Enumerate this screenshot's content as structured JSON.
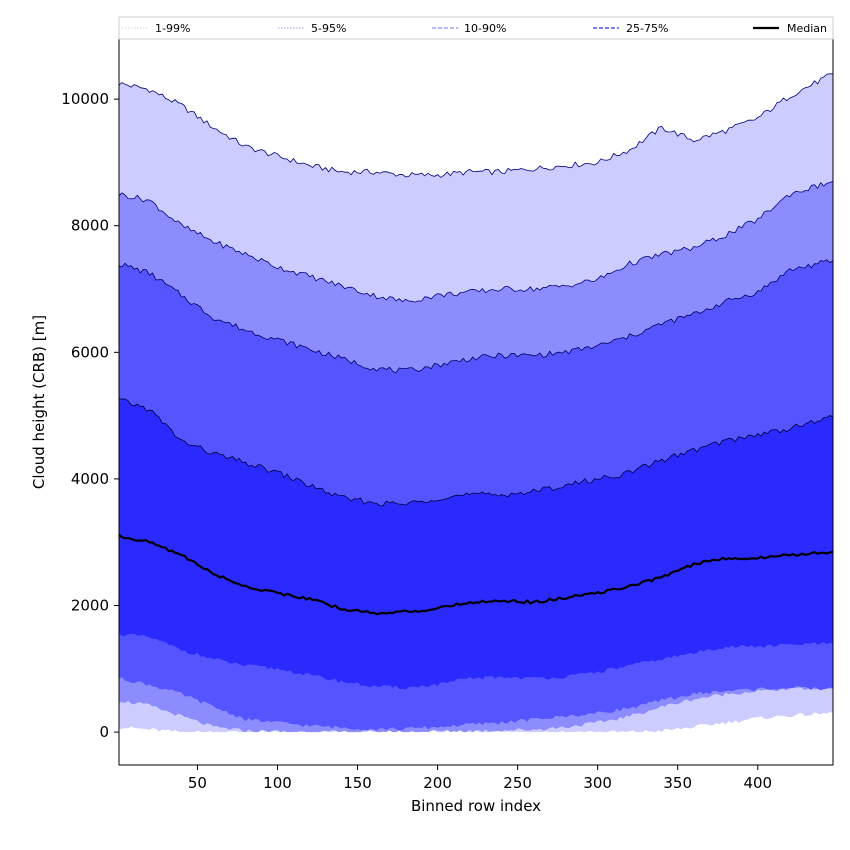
{
  "chart_data": {
    "type": "area",
    "xlabel": "Binned row index",
    "ylabel": "Cloud height (CRB) [m]",
    "xlim": [
      1,
      447
    ],
    "ylim": [
      -520,
      10950
    ],
    "x_ticks": [
      50,
      100,
      150,
      200,
      250,
      300,
      350,
      400
    ],
    "y_ticks": [
      0,
      2000,
      4000,
      6000,
      8000,
      10000
    ],
    "legend_position": "top",
    "x": [
      1,
      20,
      40,
      60,
      80,
      100,
      120,
      140,
      160,
      180,
      200,
      220,
      240,
      260,
      280,
      300,
      320,
      340,
      360,
      380,
      400,
      420,
      447
    ],
    "bands": [
      {
        "name": "1-99%",
        "color": "#ccccff",
        "edge_color": "#000080",
        "lower": [
          80,
          40,
          0,
          0,
          0,
          0,
          0,
          0,
          0,
          0,
          0,
          0,
          0,
          0,
          0,
          0,
          0,
          20,
          80,
          150,
          220,
          260,
          300
        ],
        "upper": [
          10250,
          10150,
          9900,
          9550,
          9250,
          9100,
          8950,
          8850,
          8850,
          8800,
          8800,
          8850,
          8850,
          8900,
          8950,
          9000,
          9200,
          9550,
          9350,
          9500,
          9700,
          10050,
          10400
        ]
      },
      {
        "name": "5-95%",
        "color": "#8c8cff",
        "edge_color": "#000080",
        "lower": [
          500,
          420,
          250,
          80,
          20,
          10,
          0,
          0,
          0,
          0,
          10,
          20,
          30,
          40,
          80,
          150,
          250,
          400,
          520,
          600,
          650,
          680,
          700
        ],
        "upper": [
          8500,
          8400,
          8000,
          7750,
          7550,
          7350,
          7200,
          7050,
          6900,
          6800,
          6900,
          6950,
          7000,
          7000,
          7050,
          7150,
          7400,
          7550,
          7650,
          7850,
          8100,
          8500,
          8700
        ]
      },
      {
        "name": "10-90%",
        "color": "#5555ff",
        "edge_color": "#000060",
        "lower": [
          850,
          750,
          600,
          400,
          200,
          150,
          100,
          70,
          50,
          50,
          80,
          120,
          150,
          200,
          250,
          300,
          380,
          500,
          600,
          650,
          680,
          700,
          680
        ],
        "upper": [
          7400,
          7250,
          6900,
          6550,
          6350,
          6200,
          6050,
          5900,
          5750,
          5700,
          5800,
          5900,
          5950,
          5950,
          6000,
          6100,
          6250,
          6450,
          6600,
          6800,
          6950,
          7300,
          7450
        ]
      },
      {
        "name": "25-75%",
        "color": "#2a2aff",
        "edge_color": "#000040",
        "lower": [
          1550,
          1500,
          1300,
          1150,
          1050,
          1000,
          900,
          800,
          720,
          700,
          750,
          850,
          870,
          850,
          870,
          950,
          1050,
          1150,
          1250,
          1350,
          1350,
          1380,
          1400
        ],
        "upper": [
          5250,
          5100,
          4600,
          4400,
          4250,
          4100,
          3900,
          3700,
          3620,
          3600,
          3700,
          3750,
          3750,
          3800,
          3900,
          4000,
          4100,
          4300,
          4450,
          4600,
          4700,
          4800,
          4980
        ]
      }
    ],
    "series": [
      {
        "name": "Median",
        "color": "#000000",
        "y": [
          3100,
          3000,
          2800,
          2500,
          2300,
          2200,
          2100,
          1950,
          1880,
          1900,
          1950,
          2050,
          2080,
          2050,
          2120,
          2200,
          2300,
          2450,
          2650,
          2750,
          2750,
          2800,
          2850
        ]
      }
    ],
    "legend": [
      {
        "label": "1-99%",
        "style": "dotted",
        "color": "#aaaaaa",
        "width": 0.6
      },
      {
        "label": "5-95%",
        "style": "dotted",
        "color": "#4040a0",
        "width": 0.6
      },
      {
        "label": "10-90%",
        "style": "dashed",
        "color": "#7070ff",
        "width": 1
      },
      {
        "label": "25-75%",
        "style": "dashed",
        "color": "#3030d0",
        "width": 1.2
      },
      {
        "label": "Median",
        "style": "solid",
        "color": "#000000",
        "width": 2.2
      }
    ]
  }
}
